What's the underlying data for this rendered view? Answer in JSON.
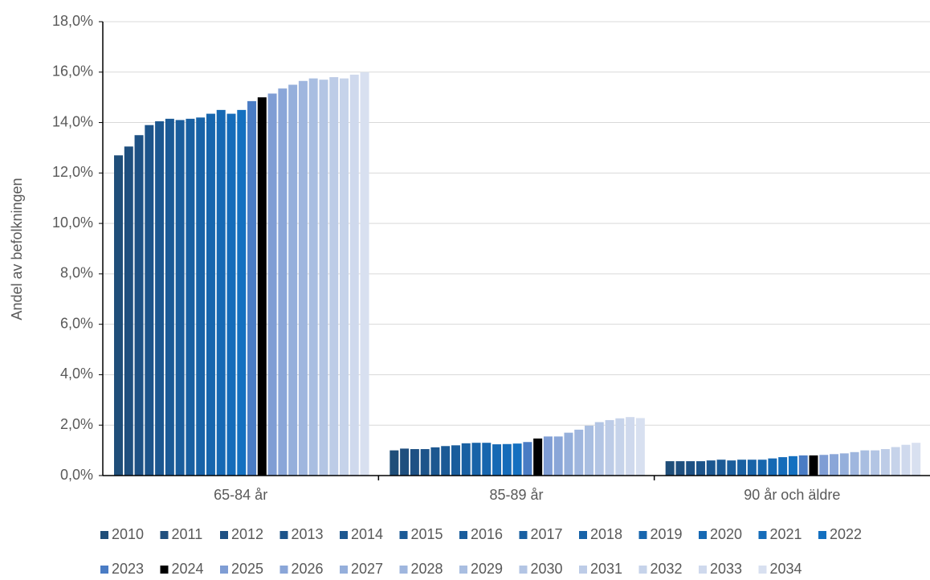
{
  "chart_data": {
    "type": "bar",
    "y_label": "Andel av befolkningen",
    "categories": [
      "65-84 år",
      "85-89 år",
      "90 år och äldre"
    ],
    "ylim": [
      0,
      18
    ],
    "yticks": [
      {
        "value": 0,
        "label": "0,0%"
      },
      {
        "value": 2,
        "label": "2,0%"
      },
      {
        "value": 4,
        "label": "4,0%"
      },
      {
        "value": 6,
        "label": "6,0%"
      },
      {
        "value": 8,
        "label": "8,0%"
      },
      {
        "value": 10,
        "label": "10,0%"
      },
      {
        "value": 12,
        "label": "12,0%"
      },
      {
        "value": 14,
        "label": "14,0%"
      },
      {
        "value": 16,
        "label": "16,0%"
      },
      {
        "value": 18,
        "label": "18,0%"
      }
    ],
    "grid": true,
    "legend": "bottom",
    "series": [
      {
        "name": "2010",
        "color": "#1f4e79",
        "values": [
          12.7,
          1.0,
          0.57
        ]
      },
      {
        "name": "2011",
        "color": "#1f4f7e",
        "values": [
          13.05,
          1.07,
          0.57
        ]
      },
      {
        "name": "2012",
        "color": "#1e5184",
        "values": [
          13.5,
          1.05,
          0.57
        ]
      },
      {
        "name": "2013",
        "color": "#1d548a",
        "values": [
          13.9,
          1.05,
          0.57
        ]
      },
      {
        "name": "2014",
        "color": "#1c5790",
        "values": [
          14.05,
          1.12,
          0.6
        ]
      },
      {
        "name": "2015",
        "color": "#1b5a96",
        "values": [
          14.15,
          1.17,
          0.63
        ]
      },
      {
        "name": "2016",
        "color": "#1a5d9c",
        "values": [
          14.1,
          1.2,
          0.6
        ]
      },
      {
        "name": "2017",
        "color": "#1960a2",
        "values": [
          14.15,
          1.28,
          0.63
        ]
      },
      {
        "name": "2018",
        "color": "#1863a8",
        "values": [
          14.2,
          1.3,
          0.63
        ]
      },
      {
        "name": "2019",
        "color": "#1766ae",
        "values": [
          14.35,
          1.3,
          0.63
        ]
      },
      {
        "name": "2020",
        "color": "#1669b4",
        "values": [
          14.5,
          1.24,
          0.68
        ]
      },
      {
        "name": "2021",
        "color": "#156cba",
        "values": [
          14.35,
          1.25,
          0.73
        ]
      },
      {
        "name": "2022",
        "color": "#1470c0",
        "values": [
          14.5,
          1.27,
          0.77
        ]
      },
      {
        "name": "2023",
        "color": "#4a7cc4",
        "values": [
          14.85,
          1.33,
          0.8
        ]
      },
      {
        "name": "2024",
        "color": "#000000",
        "values": [
          15.0,
          1.47,
          0.8
        ]
      },
      {
        "name": "2025",
        "color": "#7f9dd4",
        "values": [
          15.15,
          1.55,
          0.82
        ]
      },
      {
        "name": "2026",
        "color": "#8aa6d8",
        "values": [
          15.35,
          1.55,
          0.85
        ]
      },
      {
        "name": "2027",
        "color": "#95afdb",
        "values": [
          15.5,
          1.7,
          0.88
        ]
      },
      {
        "name": "2028",
        "color": "#9fb6de",
        "values": [
          15.65,
          1.82,
          0.93
        ]
      },
      {
        "name": "2029",
        "color": "#a9bee1",
        "values": [
          15.75,
          1.98,
          1.0
        ]
      },
      {
        "name": "2030",
        "color": "#b3c5e4",
        "values": [
          15.7,
          2.12,
          1.0
        ]
      },
      {
        "name": "2031",
        "color": "#bdcce7",
        "values": [
          15.8,
          2.2,
          1.05
        ]
      },
      {
        "name": "2032",
        "color": "#c6d3ea",
        "values": [
          15.75,
          2.27,
          1.13
        ]
      },
      {
        "name": "2033",
        "color": "#cfd9ed",
        "values": [
          15.9,
          2.32,
          1.22
        ]
      },
      {
        "name": "2034",
        "color": "#d8e0f0",
        "values": [
          16.0,
          2.28,
          1.3
        ]
      }
    ]
  }
}
